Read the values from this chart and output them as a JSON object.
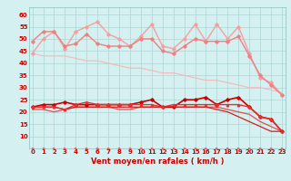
{
  "x": [
    0,
    1,
    2,
    3,
    4,
    5,
    6,
    7,
    8,
    9,
    10,
    11,
    12,
    13,
    14,
    15,
    16,
    17,
    18,
    19,
    20,
    21,
    22,
    23
  ],
  "series": [
    {
      "name": "line1_light_pink_upper",
      "color": "#f4a0a0",
      "linewidth": 1.0,
      "marker": "D",
      "markersize": 1.8,
      "y": [
        44,
        50,
        53,
        46,
        53,
        55,
        57,
        52,
        50,
        47,
        51,
        56,
        47,
        46,
        50,
        56,
        49,
        56,
        50,
        55,
        44,
        34,
        32,
        27
      ]
    },
    {
      "name": "line2_medium_pink",
      "color": "#f08080",
      "linewidth": 1.0,
      "marker": "D",
      "markersize": 1.8,
      "y": [
        49,
        53,
        53,
        47,
        48,
        52,
        48,
        47,
        47,
        47,
        50,
        50,
        45,
        44,
        47,
        50,
        49,
        49,
        49,
        51,
        43,
        35,
        31,
        27
      ]
    },
    {
      "name": "line3_diagonal_light",
      "color": "#f4b8b8",
      "linewidth": 0.8,
      "marker": null,
      "markersize": 0,
      "y": [
        44,
        43,
        43,
        43,
        42,
        41,
        41,
        40,
        39,
        38,
        38,
        37,
        36,
        36,
        35,
        34,
        33,
        33,
        32,
        31,
        30,
        30,
        29,
        28
      ]
    },
    {
      "name": "line4_dark_red_main",
      "color": "#cc0000",
      "linewidth": 1.2,
      "marker": "D",
      "markersize": 1.8,
      "y": [
        22,
        23,
        23,
        24,
        23,
        23,
        23,
        23,
        23,
        23,
        24,
        25,
        22,
        22,
        25,
        25,
        26,
        23,
        25,
        26,
        22,
        18,
        17,
        12
      ]
    },
    {
      "name": "line5_red_medium",
      "color": "#e83030",
      "linewidth": 1.0,
      "marker": "^",
      "markersize": 1.8,
      "y": [
        22,
        22,
        22,
        21,
        23,
        24,
        23,
        23,
        23,
        23,
        23,
        23,
        22,
        23,
        23,
        23,
        23,
        23,
        23,
        23,
        22,
        18,
        17,
        12
      ]
    },
    {
      "name": "line6_red_lower1",
      "color": "#e05050",
      "linewidth": 0.9,
      "marker": null,
      "markersize": 0,
      "y": [
        21,
        21,
        20,
        21,
        22,
        22,
        22,
        22,
        21,
        21,
        22,
        22,
        22,
        22,
        22,
        22,
        22,
        22,
        21,
        20,
        19,
        16,
        14,
        12
      ]
    },
    {
      "name": "line7_red_lower2",
      "color": "#cc2020",
      "linewidth": 0.9,
      "marker": null,
      "markersize": 0,
      "y": [
        22,
        22,
        22,
        21,
        22,
        22,
        22,
        22,
        22,
        22,
        22,
        22,
        22,
        22,
        22,
        22,
        22,
        21,
        20,
        18,
        16,
        14,
        12,
        12
      ]
    },
    {
      "name": "line8_arrows_bottom",
      "color": "#ff6060",
      "linewidth": 0.7,
      "marker": ">",
      "markersize": 1.5,
      "y": [
        5,
        5,
        5,
        5,
        5,
        5,
        5,
        5,
        5,
        5,
        5,
        5,
        5,
        5,
        5,
        5,
        5,
        5,
        5,
        5,
        5,
        5,
        5,
        5
      ]
    }
  ],
  "xlim": [
    -0.3,
    23.3
  ],
  "ylim": [
    5,
    63
  ],
  "yticks": [
    10,
    15,
    20,
    25,
    30,
    35,
    40,
    45,
    50,
    55,
    60
  ],
  "xticks": [
    0,
    1,
    2,
    3,
    4,
    5,
    6,
    7,
    8,
    9,
    10,
    11,
    12,
    13,
    14,
    15,
    16,
    17,
    18,
    19,
    20,
    21,
    22,
    23
  ],
  "xlabel": "Vent moyen/en rafales ( km/h )",
  "background_color": "#d4f0f0",
  "grid_color": "#aed4d4",
  "tick_fontsize": 5.0,
  "xlabel_fontsize": 6.0
}
